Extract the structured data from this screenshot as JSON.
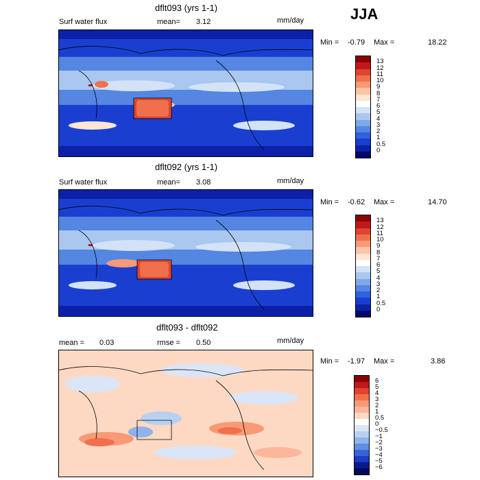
{
  "season": "JJA",
  "unit": "mm/day",
  "panels": [
    {
      "title": "dflt093 (yrs 1-1)",
      "left_label": "Surf water flux",
      "mean_label": "mean=",
      "mean_value": "3.12",
      "unit": "mm/day",
      "min_label": "Min =",
      "min_value": "-0.79",
      "max_label": "Max =",
      "max_value": "18.22",
      "colorbar_labels": [
        "13",
        "12",
        "11",
        "10",
        "9",
        "8",
        "7",
        "6",
        "5",
        "4",
        "3",
        "2",
        "1",
        "0.5",
        "0"
      ],
      "colorbar_colors": [
        "#8b0000",
        "#c0191c",
        "#e0442c",
        "#f0704e",
        "#f89a76",
        "#fdc4a6",
        "#fde6d2",
        "#ffffff",
        "#d3e2f6",
        "#a9c7ef",
        "#7ea8e8",
        "#5486e2",
        "#2f62dd",
        "#1a3fd0",
        "#0d21a8",
        "#000a6e"
      ]
    },
    {
      "title": "dflt092 (yrs 1-1)",
      "left_label": "Surf water flux",
      "mean_label": "mean=",
      "mean_value": "3.08",
      "unit": "mm/day",
      "min_label": "Min =",
      "min_value": "-0.62",
      "max_label": "Max =",
      "max_value": "14.70",
      "colorbar_labels": [
        "13",
        "12",
        "11",
        "10",
        "9",
        "8",
        "7",
        "6",
        "5",
        "4",
        "3",
        "2",
        "1",
        "0.5",
        "0"
      ],
      "colorbar_colors": [
        "#8b0000",
        "#c0191c",
        "#e0442c",
        "#f0704e",
        "#f89a76",
        "#fdc4a6",
        "#fde6d2",
        "#ffffff",
        "#d3e2f6",
        "#a9c7ef",
        "#7ea8e8",
        "#5486e2",
        "#2f62dd",
        "#1a3fd0",
        "#0d21a8",
        "#000a6e"
      ]
    },
    {
      "title": "dflt093 - dflt092",
      "left_label": "mean =",
      "left_value": "0.03",
      "mid_label": "rmse =",
      "mid_value": "0.50",
      "unit": "mm/day",
      "min_label": "Min =",
      "min_value": "-1.97",
      "max_label": "Max =",
      "max_value": "3.86",
      "colorbar_labels": [
        "6",
        "5",
        "4",
        "3",
        "2",
        "1",
        "0.5",
        "0",
        "-0.5",
        "-1",
        "-2",
        "-3",
        "-4",
        "-5",
        "-6"
      ],
      "colorbar_colors": [
        "#8b0000",
        "#c0191c",
        "#e0442c",
        "#f0704e",
        "#f89a76",
        "#fcb79a",
        "#fdd9c4",
        "#ffffff",
        "#dae6f7",
        "#b8d0f1",
        "#8fb3ea",
        "#628ee2",
        "#3765d9",
        "#1b3dc6",
        "#0a1a8c",
        "#000a5a"
      ]
    }
  ]
}
